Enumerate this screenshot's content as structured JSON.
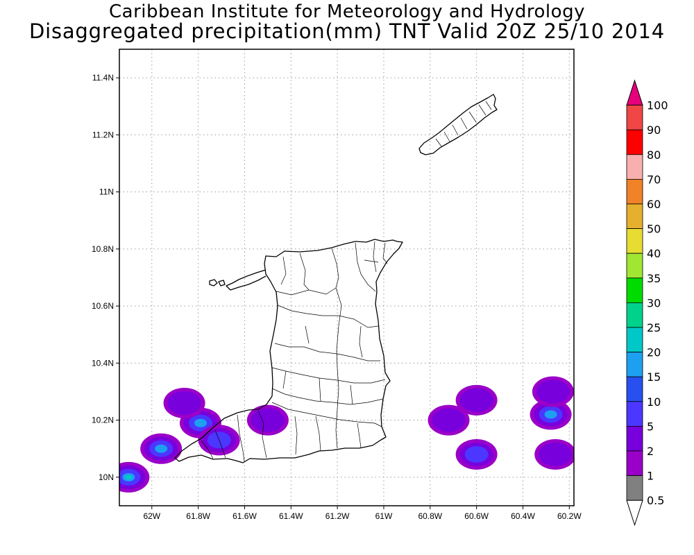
{
  "title": {
    "line1": "Caribbean Institute for Meteorology and Hydrology",
    "line2": "Disaggregated precipitation(mm) TNT Valid 20Z 25/10 2014"
  },
  "axes": {
    "lon_ticks": [
      {
        "value": -62.0,
        "label": "62W"
      },
      {
        "value": -61.8,
        "label": "61.8W"
      },
      {
        "value": -61.6,
        "label": "61.6W"
      },
      {
        "value": -61.4,
        "label": "61.4W"
      },
      {
        "value": -61.2,
        "label": "61.2W"
      },
      {
        "value": -61.0,
        "label": "61W"
      },
      {
        "value": -60.8,
        "label": "60.8W"
      },
      {
        "value": -60.6,
        "label": "60.6W"
      },
      {
        "value": -60.4,
        "label": "60.4W"
      },
      {
        "value": -60.2,
        "label": "60.2W"
      }
    ],
    "lat_ticks": [
      {
        "value": 10.0,
        "label": "10N"
      },
      {
        "value": 10.2,
        "label": "10.2N"
      },
      {
        "value": 10.4,
        "label": "10.4N"
      },
      {
        "value": 10.6,
        "label": "10.6N"
      },
      {
        "value": 10.8,
        "label": "10.8N"
      },
      {
        "value": 11.0,
        "label": "11N"
      },
      {
        "value": 11.2,
        "label": "11.2N"
      },
      {
        "value": 11.4,
        "label": "11.4N"
      }
    ],
    "lon_range": [
      -62.14,
      -60.18
    ],
    "lat_range": [
      9.9,
      11.5
    ],
    "grid": true
  },
  "colorbar": {
    "levels": [
      "0.5",
      "1",
      "2",
      "5",
      "10",
      "15",
      "20",
      "25",
      "30",
      "35",
      "40",
      "50",
      "60",
      "70",
      "80",
      "90",
      "100"
    ],
    "colors": [
      "#ffffff",
      "#808080",
      "#9a00c8",
      "#7800dc",
      "#4b37ff",
      "#2850f0",
      "#1ea0f0",
      "#00c8c8",
      "#00d28c",
      "#00dc00",
      "#a0e632",
      "#e6dc32",
      "#e6af2d",
      "#f08228",
      "#faafaf",
      "#ff0000",
      "#f04646",
      "#e6007c"
    ]
  },
  "precip_features": [
    {
      "lon": -62.1,
      "lat": 10.0,
      "levels": [
        "1",
        "2",
        "5",
        "15",
        "20"
      ]
    },
    {
      "lon": -61.96,
      "lat": 10.1,
      "levels": [
        "1",
        "2",
        "5",
        "15"
      ]
    },
    {
      "lon": -61.79,
      "lat": 10.19,
      "levels": [
        "1",
        "2",
        "5",
        "15"
      ]
    },
    {
      "lon": -61.86,
      "lat": 10.26,
      "levels": [
        "1",
        "2"
      ]
    },
    {
      "lon": -61.71,
      "lat": 10.13,
      "levels": [
        "1",
        "2",
        "5"
      ]
    },
    {
      "lon": -61.5,
      "lat": 10.2,
      "levels": [
        "1",
        "2"
      ]
    },
    {
      "lon": -60.72,
      "lat": 10.2,
      "levels": [
        "1",
        "2"
      ]
    },
    {
      "lon": -60.6,
      "lat": 10.27,
      "levels": [
        "1",
        "2"
      ]
    },
    {
      "lon": -60.6,
      "lat": 10.08,
      "levels": [
        "1",
        "2",
        "5"
      ]
    },
    {
      "lon": -60.28,
      "lat": 10.22,
      "levels": [
        "1",
        "2",
        "5",
        "15"
      ]
    },
    {
      "lon": -60.27,
      "lat": 10.3,
      "levels": [
        "1",
        "2"
      ]
    },
    {
      "lon": -60.26,
      "lat": 10.08,
      "levels": [
        "1",
        "2"
      ]
    }
  ]
}
